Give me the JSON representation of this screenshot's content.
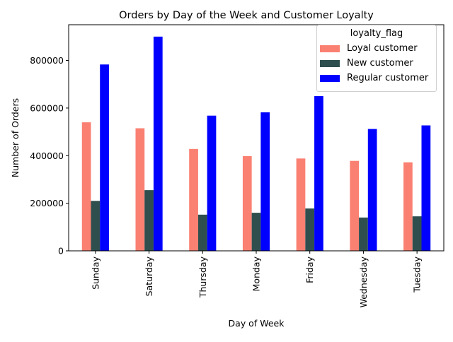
{
  "chart_data": {
    "type": "bar",
    "title": "Orders by Day of the Week and Customer Loyalty",
    "xlabel": "Day of Week",
    "ylabel": "Number of Orders",
    "ylim": [
      0,
      950000
    ],
    "yticks": [
      "0",
      "200000",
      "400000",
      "600000",
      "800000"
    ],
    "ytick_values": [
      0,
      200000,
      400000,
      600000,
      800000
    ],
    "categories": [
      "Sunday",
      "Saturday",
      "Thursday",
      "Monday",
      "Friday",
      "Wednesday",
      "Tuesday"
    ],
    "legend_title": "loyalty_flag",
    "legend_position": "top-right",
    "series": [
      {
        "name": "Loyal customer",
        "color": "#fa8072",
        "values": [
          540000,
          515000,
          428000,
          398000,
          388000,
          378000,
          372000
        ]
      },
      {
        "name": "New customer",
        "color": "#2f4f4f",
        "values": [
          210000,
          255000,
          152000,
          160000,
          178000,
          140000,
          145000
        ]
      },
      {
        "name": "Regular customer",
        "color": "#0000ff",
        "values": [
          783000,
          900000,
          568000,
          582000,
          650000,
          512000,
          527000
        ]
      }
    ]
  }
}
